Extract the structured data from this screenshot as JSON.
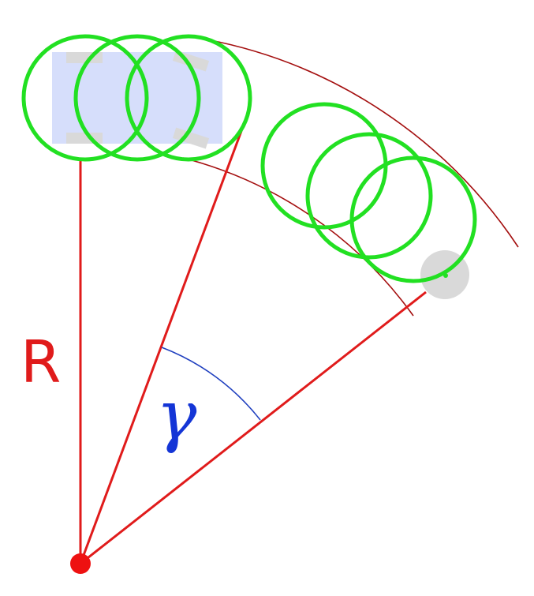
{
  "labels": {
    "radius": "R",
    "angle": "γ"
  },
  "colors": {
    "radius_lines": "#e01b1b",
    "arc_boundaries": "#a40f0f",
    "angle_arc": "#1f3fbf",
    "angle_label": "#1435d6",
    "footprint_circles": "#22e022",
    "vehicle_body": "#d6defb",
    "vehicle_wheels": "#d9d9d9",
    "target_marker": "#d9d9d9",
    "center_point": "#ee1111"
  }
}
